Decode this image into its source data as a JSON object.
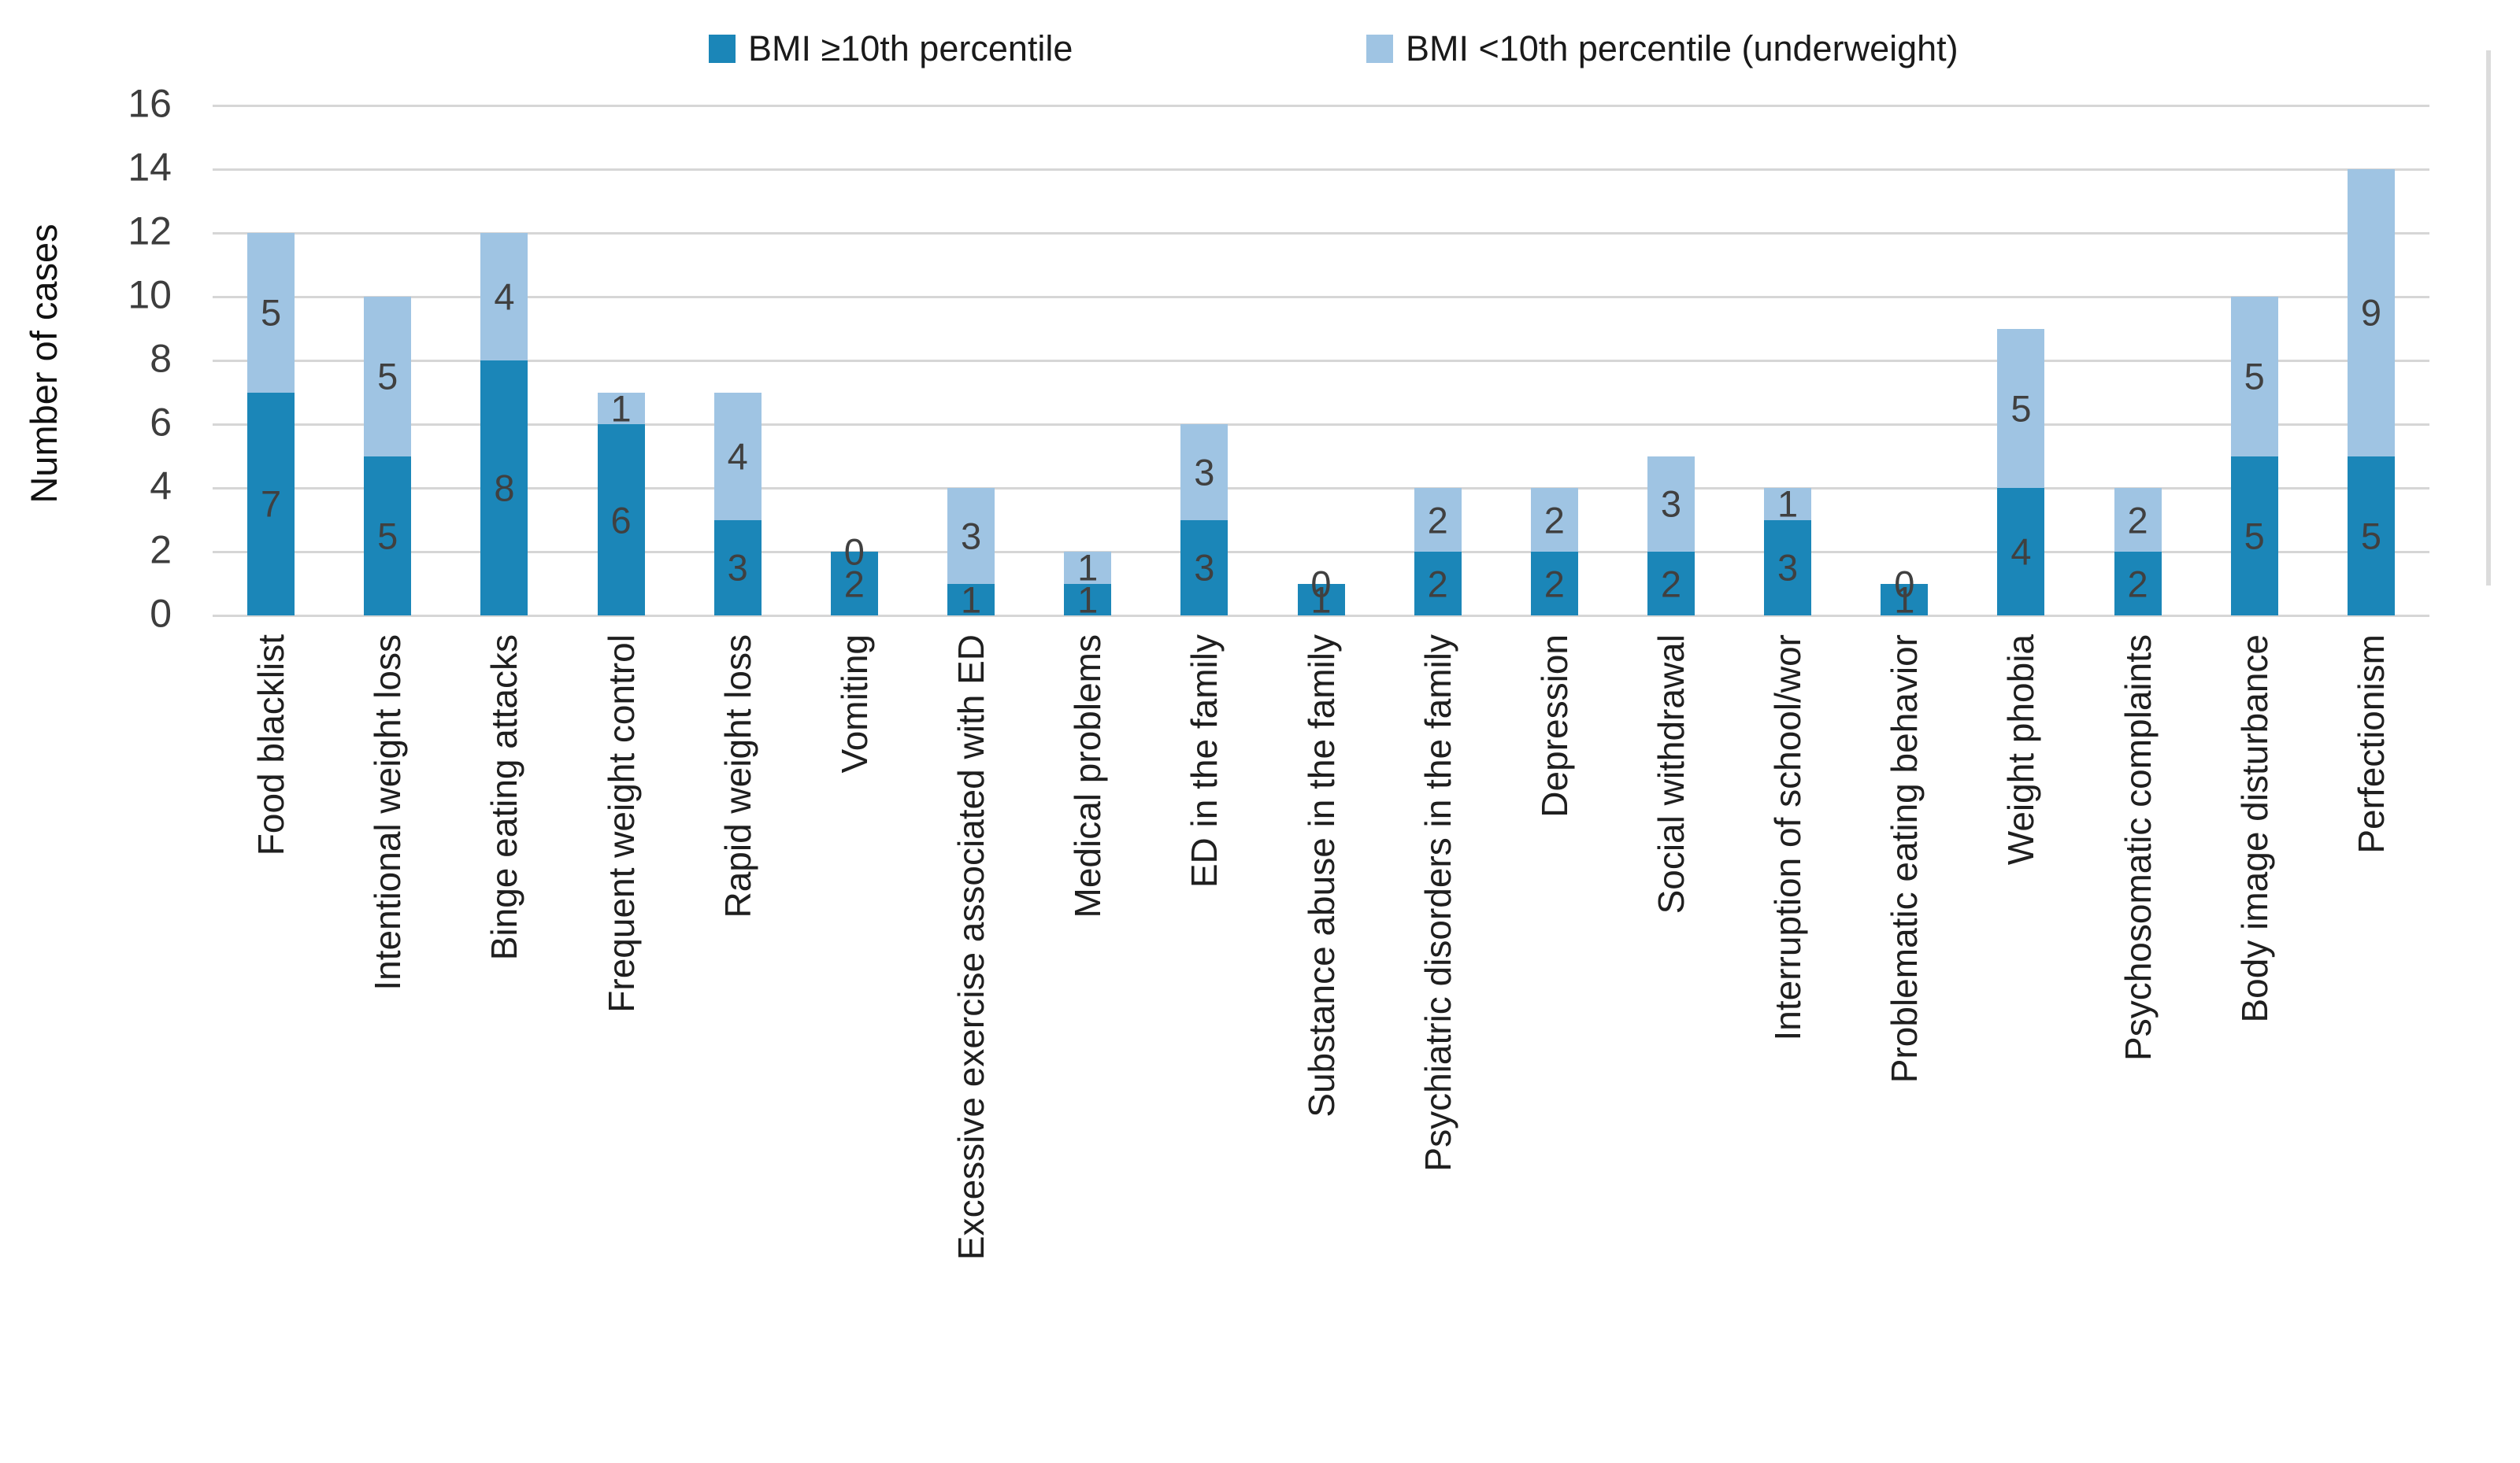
{
  "legend": [
    {
      "label": "BMI ≥10th percentile",
      "color": "#1B86B8"
    },
    {
      "label": "BMI <10th percentile (underweight)",
      "color": "#9FC4E3"
    }
  ],
  "y_axis": {
    "title": "Number of cases",
    "ticks": [
      16,
      14,
      12,
      10,
      8,
      6,
      4,
      2,
      0
    ]
  },
  "chart_data": {
    "type": "bar",
    "stacked": true,
    "title": "",
    "xlabel": "",
    "ylabel": "Number of cases",
    "ylim": [
      0,
      16
    ],
    "ytick_step": 2,
    "grid": true,
    "legend_position": "top",
    "categories": [
      "Food blacklist",
      "Intentional weight loss",
      "Binge eating attacks",
      "Frequent weight control",
      "Rapid weight loss",
      "Vomiting",
      "Excessive exercise associated with ED",
      "Medical problems",
      "ED in the family",
      "Substance abuse in the family",
      "Psychiatric disorders in the family",
      "Depression",
      "Social withdrawal",
      "Interruption of school/wor",
      "Problematic eating behavior",
      "Weight phobia",
      "Psychosomatic complaints",
      "Body image disturbance",
      "Perfectionism"
    ],
    "series": [
      {
        "name": "BMI ≥10th percentile",
        "color": "#1B86B8",
        "values": [
          7,
          5,
          8,
          6,
          3,
          2,
          1,
          1,
          3,
          1,
          2,
          2,
          2,
          3,
          1,
          4,
          2,
          5,
          5
        ]
      },
      {
        "name": "BMI <10th percentile (underweight)",
        "color": "#9FC4E3",
        "values": [
          5,
          5,
          4,
          1,
          4,
          0,
          3,
          1,
          3,
          0,
          2,
          2,
          3,
          1,
          0,
          5,
          2,
          5,
          9
        ]
      }
    ],
    "totals": [
      12,
      10,
      12,
      7,
      7,
      2,
      4,
      2,
      6,
      1,
      4,
      4,
      5,
      4,
      1,
      9,
      4,
      10,
      14
    ],
    "value_label_color": "#404040"
  },
  "colors": {
    "grid": "#D6D6D6",
    "right_border": "#DCDCDC",
    "tick_text": "#3D3D3D",
    "category_text": "#1F1F1F",
    "background": "#FFFFFF"
  }
}
